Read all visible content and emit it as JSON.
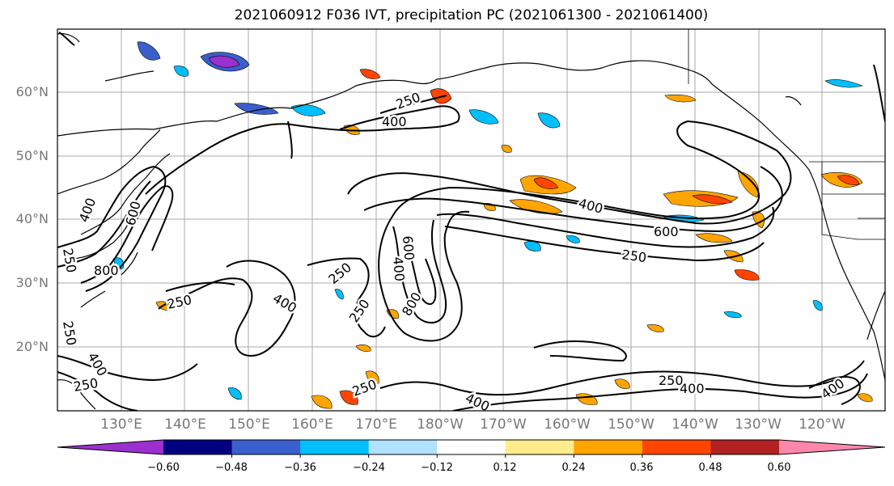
{
  "title": "2021060912 F036 IVT, precipitation PC (2021061300 - 2021061400)",
  "lat_labels": [
    "60°N",
    "50°N",
    "40°N",
    "30°N",
    "20°N"
  ],
  "lon_labels": [
    "130°E",
    "140°E",
    "150°E",
    "160°E",
    "170°E",
    "180°W",
    "170°W",
    "160°W",
    "150°W",
    "140°W",
    "130°W",
    "120°W"
  ],
  "contour_labels": [
    "250",
    "400",
    "250",
    "400",
    "600",
    "800",
    "250",
    "400",
    "600",
    "800",
    "250",
    "250",
    "250",
    "400",
    "400",
    "250",
    "400",
    "600",
    "250",
    "250",
    "400",
    "400",
    "250",
    "400"
  ],
  "colorbar": {
    "colors": [
      "#9b30d0",
      "#000080",
      "#3a5fcd",
      "#00bfff",
      "#b0e2ff",
      "#ffffff",
      "#ffec8b",
      "#ffa500",
      "#ff4500",
      "#b22222",
      "#ff88aa"
    ],
    "tick_labels": [
      "−0.60",
      "−0.48",
      "−0.36",
      "−0.24",
      "−0.12",
      "0.12",
      "0.24",
      "0.36",
      "0.48",
      "0.60"
    ]
  }
}
